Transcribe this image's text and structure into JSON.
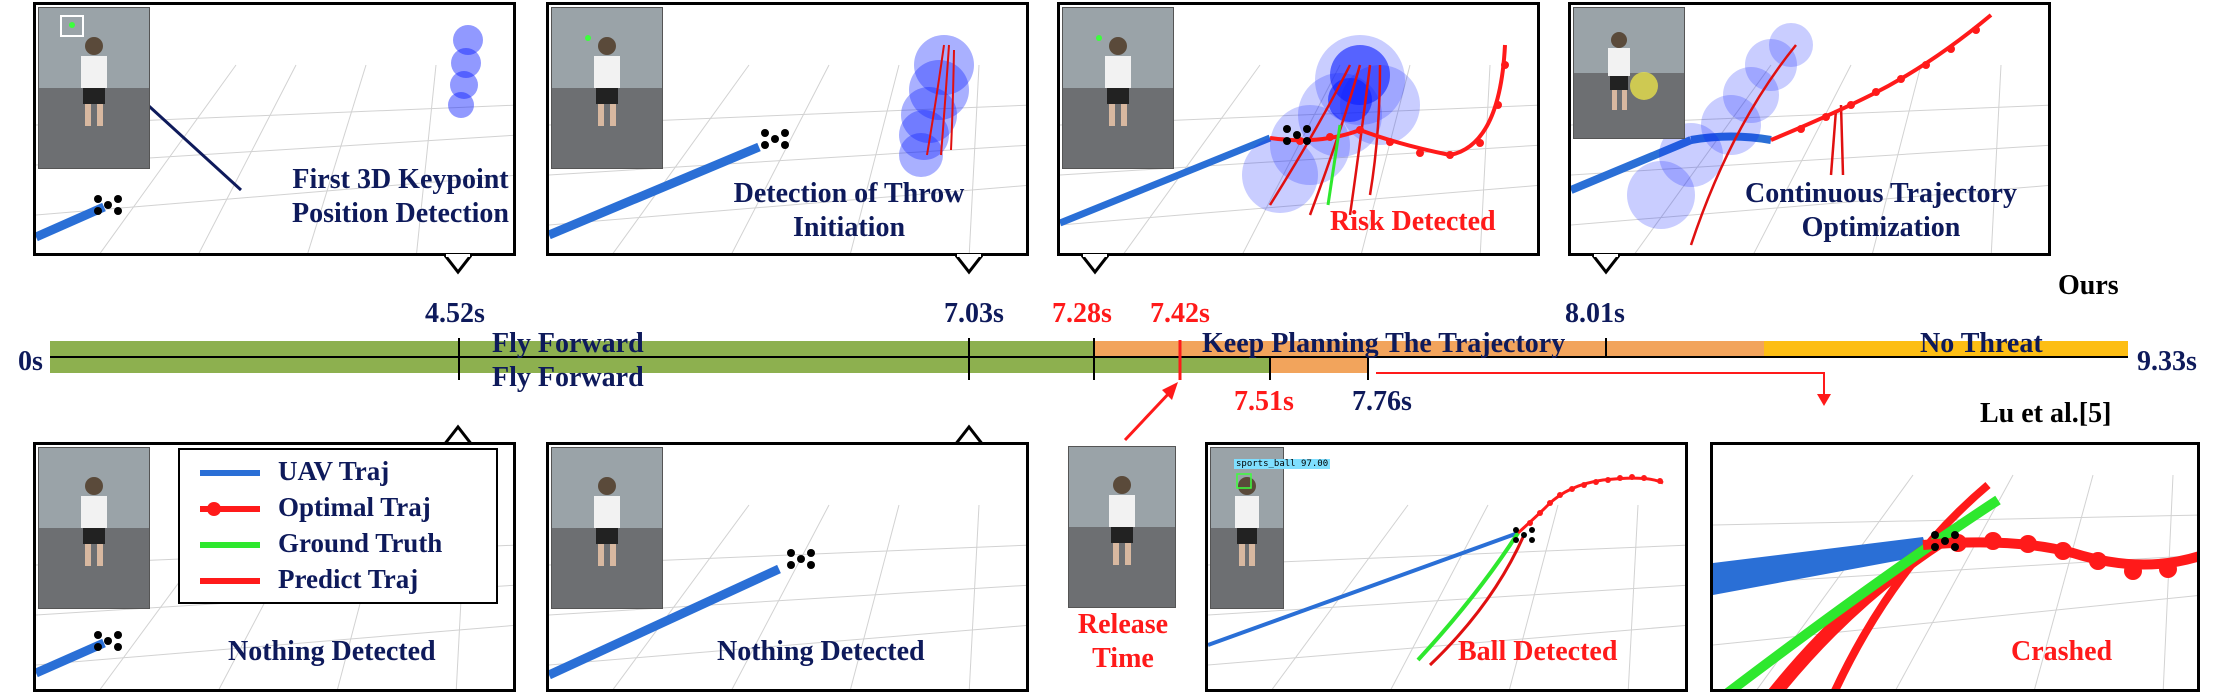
{
  "panels_top": [
    {
      "caption": [
        "First 3D Keypoint",
        "Position Detection"
      ],
      "color": "#0e1a5b"
    },
    {
      "caption": [
        "Detection of Throw",
        "Initiation"
      ],
      "color": "#0e1a5b"
    },
    {
      "caption": [
        "Risk Detected"
      ],
      "color": "#ff1a1a"
    },
    {
      "caption": [
        "Continuous Trajectory",
        "Optimization"
      ],
      "color": "#0e1a5b"
    }
  ],
  "panels_bottom": [
    {
      "caption": [
        "Nothing Detected"
      ],
      "color": "#0e1a5b"
    },
    {
      "caption": [
        "Nothing Detected"
      ],
      "color": "#0e1a5b"
    },
    {
      "caption": [
        "Ball Detected"
      ],
      "color": "#ff1a1a"
    },
    {
      "caption": [
        "Crashed"
      ],
      "color": "#ff1a1a"
    }
  ],
  "release": {
    "caption": [
      "Release",
      "Time"
    ]
  },
  "detection_tag": "sports_ball 97.00",
  "legend": [
    {
      "label": "UAV Traj",
      "color": "#2a6fd6",
      "marker": false
    },
    {
      "label": "Optimal Traj",
      "color": "#ff1a1a",
      "marker": true
    },
    {
      "label": "Ground Truth",
      "color": "#2ee82e",
      "marker": false
    },
    {
      "label": "Predict Traj",
      "color": "#ff1a1a",
      "marker": false
    }
  ],
  "timeline": {
    "start": "0s",
    "end": "9.33s",
    "method_top": "Ours",
    "method_bottom": "Lu et al.[5]",
    "phase_top_1": "Fly Forward",
    "phase_top_2": "Keep Planning The Trajectory",
    "phase_top_3": "No Threat",
    "phase_bottom_1": "Fly Forward",
    "ticks_top": [
      {
        "label": "4.52s",
        "color": "#0e1a5b"
      },
      {
        "label": "7.03s",
        "color": "#0e1a5b"
      },
      {
        "label": "7.28s",
        "color": "#ff1a1a"
      },
      {
        "label": "7.42s",
        "color": "#ff1a1a"
      },
      {
        "label": "8.01s",
        "color": "#0e1a5b"
      }
    ],
    "ticks_bottom": [
      {
        "label": "7.51s",
        "color": "#ff1a1a"
      },
      {
        "label": "7.76s",
        "color": "#0e1a5b"
      }
    ],
    "colors": {
      "green": "#8db04f",
      "orange": "#f2a45c",
      "yellow": "#fdbe14"
    }
  }
}
